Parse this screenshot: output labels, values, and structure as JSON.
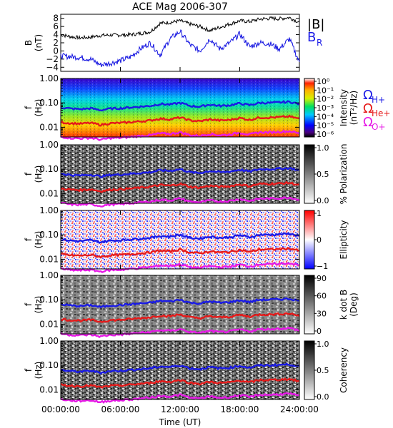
{
  "chart_data": [
    {
      "type": "line",
      "panel": "B",
      "title": "ACE Mag 2006-307",
      "ylabel": "B",
      "yunit": "(nT)",
      "ylim": [
        -5,
        9
      ],
      "yticks": [
        {
          "value": 8,
          "label": "8"
        },
        {
          "value": 6,
          "label": "6"
        },
        {
          "value": 4,
          "label": "4"
        },
        {
          "value": 2,
          "label": "2"
        },
        {
          "value": 0,
          "label": "0"
        },
        {
          "value": -2,
          "label": "−2"
        },
        {
          "value": -4,
          "label": "−4"
        }
      ],
      "x_hours": [
        0,
        1,
        2,
        3,
        4,
        5,
        6,
        7,
        8,
        9,
        10,
        11,
        12,
        13,
        14,
        15,
        16,
        17,
        18,
        19,
        20,
        21,
        22,
        23,
        24
      ],
      "series": [
        {
          "name": "|B|",
          "color": "#000000",
          "values": [
            4.0,
            3.5,
            3.2,
            3.4,
            3.8,
            3.9,
            3.9,
            4.0,
            4.3,
            4.7,
            6.8,
            7.0,
            7.4,
            6.6,
            6.0,
            5.0,
            5.8,
            6.6,
            7.4,
            7.2,
            7.8,
            8.0,
            7.9,
            8.2,
            7.0
          ]
        },
        {
          "name": "B_R",
          "color": "#1010e0",
          "values": [
            -1.2,
            -1.4,
            -1.6,
            -2.0,
            -3.4,
            -3.0,
            -2.4,
            -1.5,
            0.5,
            2.0,
            -1.0,
            3.0,
            4.8,
            1.5,
            0.0,
            3.0,
            0.5,
            2.0,
            4.2,
            1.0,
            2.0,
            1.8,
            0.5,
            3.0,
            -2.8
          ]
        }
      ]
    },
    {
      "type": "heatmap",
      "panel": "Intensity",
      "ylabel": "f",
      "yunit": "(Hz)",
      "colorbar": {
        "label": "Intensity",
        "unit": "(nT²/Hz)",
        "scale": "log",
        "ticks": [
          "10⁰",
          "10⁻¹",
          "10⁻²",
          "10⁻³",
          "10⁻⁴",
          "10⁻⁵",
          "10⁻⁶"
        ]
      }
    },
    {
      "type": "heatmap",
      "panel": "Polarization",
      "ylabel": "f",
      "yunit": "(Hz)",
      "colorbar": {
        "label": "% Polarization",
        "ticks": [
          "1.0",
          "0.5",
          "0.0"
        ]
      }
    },
    {
      "type": "heatmap",
      "panel": "Ellipticity",
      "ylabel": "f",
      "yunit": "(Hz)",
      "colorbar": {
        "label": "Ellipticity",
        "ticks": [
          "1",
          "0",
          "−1"
        ]
      }
    },
    {
      "type": "heatmap",
      "panel": "k dot B",
      "ylabel": "f",
      "yunit": "(Hz)",
      "colorbar": {
        "label": "k dot B",
        "unit": "(Deg)",
        "ticks": [
          "90",
          "60",
          "30",
          "0"
        ]
      }
    },
    {
      "type": "heatmap",
      "panel": "Coherency",
      "ylabel": "f",
      "yunit": "(Hz)",
      "colorbar": {
        "label": "Coherency",
        "ticks": [
          "1.0",
          "0.5",
          "0.0"
        ]
      }
    }
  ],
  "spectra": {
    "ylim_hz": [
      0.004,
      1.0
    ],
    "ytick_labels": [
      "1.00",
      "0.10",
      "0.01"
    ],
    "ytick_values": [
      1.0,
      0.1,
      0.01
    ],
    "gyro_lines": [
      {
        "color": "#1a1ae6",
        "values": [
          0.065,
          0.058,
          0.055,
          0.06,
          0.05,
          0.058,
          0.06,
          0.065,
          0.07,
          0.075,
          0.09,
          0.085,
          0.1,
          0.075,
          0.07,
          0.085,
          0.075,
          0.08,
          0.095,
          0.08,
          0.1,
          0.1,
          0.105,
          0.11,
          0.09
        ]
      },
      {
        "color": "#e61a1a",
        "values": [
          0.016,
          0.0145,
          0.014,
          0.015,
          0.0125,
          0.0145,
          0.015,
          0.016,
          0.0175,
          0.019,
          0.0225,
          0.021,
          0.025,
          0.019,
          0.0175,
          0.021,
          0.019,
          0.02,
          0.024,
          0.02,
          0.025,
          0.025,
          0.026,
          0.0275,
          0.022
        ]
      },
      {
        "color": "#e61ae6",
        "values": [
          0.0041,
          0.0036,
          0.0035,
          0.0037,
          0.0031,
          0.0036,
          0.0037,
          0.004,
          0.0044,
          0.0047,
          0.0056,
          0.0053,
          0.0062,
          0.0047,
          0.0044,
          0.0053,
          0.0047,
          0.005,
          0.006,
          0.005,
          0.0062,
          0.0062,
          0.0065,
          0.0069,
          0.0055
        ]
      }
    ]
  },
  "legend": {
    "absB": "|B|",
    "BR_main": "B",
    "BR_sub": "R",
    "omega": "Ω",
    "H_sub": "H+",
    "He_sub": "He+",
    "O_sub": "O+"
  },
  "xaxis": {
    "label": "Time (UT)",
    "tick_labels": [
      "00:00:00",
      "06:00:00",
      "12:00:00",
      "18:00:00",
      "24:00:00"
    ],
    "tick_hours": [
      0,
      6,
      12,
      18,
      24
    ],
    "range_hours": [
      0,
      24
    ]
  },
  "colors": {
    "blue_series": "#1010e0",
    "red_line": "#e61a1a",
    "magenta_line": "#e61ae6",
    "legend_blue": "#1a1ae6",
    "legend_red": "#e61a1a",
    "legend_magenta": "#e61ae6"
  }
}
